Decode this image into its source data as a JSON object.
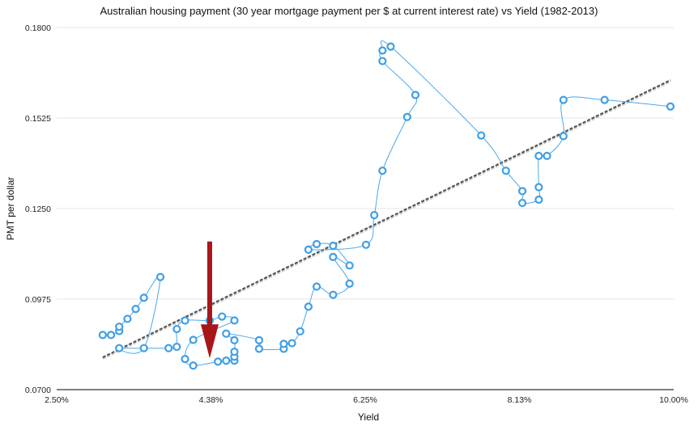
{
  "chart_data": {
    "type": "scatter",
    "title": "Australian housing payment (30 year mortgage payment per $ at current interest rate) vs Yield (1982-2013)",
    "xlabel": "Yield",
    "ylabel": "PMT per dollar",
    "xlim": [
      0.025,
      0.1
    ],
    "ylim": [
      0.07,
      0.18
    ],
    "x_ticks": [
      0.025,
      0.04375,
      0.0625,
      0.08125,
      0.1
    ],
    "x_tick_labels": [
      "2.50%",
      "4.38%",
      "6.25%",
      "8.13%",
      "10.00%"
    ],
    "y_ticks": [
      0.07,
      0.0975,
      0.125,
      0.1525,
      0.18
    ],
    "y_tick_labels": [
      "0.0700",
      "0.0975",
      "0.1250",
      "0.1525",
      "0.1800"
    ],
    "grid": "horizontal",
    "series": [
      {
        "values": [
          [
            0.0306,
            0.0866
          ],
          [
            0.0316,
            0.0866
          ],
          [
            0.0326,
            0.0878
          ],
          [
            0.0326,
            0.0891
          ],
          [
            0.0336,
            0.0915
          ],
          [
            0.0346,
            0.0945
          ],
          [
            0.0356,
            0.0979
          ],
          [
            0.0376,
            0.1042
          ],
          [
            0.0356,
            0.0826
          ],
          [
            0.0326,
            0.0826
          ],
          [
            0.0386,
            0.0826
          ],
          [
            0.0396,
            0.083
          ],
          [
            0.0396,
            0.0884
          ],
          [
            0.0406,
            0.091
          ],
          [
            0.0436,
            0.091
          ],
          [
            0.0451,
            0.0922
          ],
          [
            0.0466,
            0.091
          ],
          [
            0.0416,
            0.0851
          ],
          [
            0.0406,
            0.0793
          ],
          [
            0.0416,
            0.0773
          ],
          [
            0.0446,
            0.0785
          ],
          [
            0.0456,
            0.0788
          ],
          [
            0.0466,
            0.0788
          ],
          [
            0.0466,
            0.08
          ],
          [
            0.0466,
            0.0815
          ],
          [
            0.0466,
            0.085
          ],
          [
            0.0456,
            0.087
          ],
          [
            0.0496,
            0.085
          ],
          [
            0.0496,
            0.0824
          ],
          [
            0.0526,
            0.0824
          ],
          [
            0.0526,
            0.0839
          ],
          [
            0.0536,
            0.0841
          ],
          [
            0.0546,
            0.0877
          ],
          [
            0.0556,
            0.0952
          ],
          [
            0.0566,
            0.1013
          ],
          [
            0.0586,
            0.0988
          ],
          [
            0.0606,
            0.1022
          ],
          [
            0.0586,
            0.1103
          ],
          [
            0.0606,
            0.1077
          ],
          [
            0.0586,
            0.1137
          ],
          [
            0.0566,
            0.1142
          ],
          [
            0.0556,
            0.1125
          ],
          [
            0.0626,
            0.114
          ],
          [
            0.0636,
            0.123
          ],
          [
            0.0646,
            0.1365
          ],
          [
            0.0676,
            0.1528
          ],
          [
            0.0686,
            0.1595
          ],
          [
            0.0646,
            0.1698
          ],
          [
            0.0646,
            0.173
          ],
          [
            0.0656,
            0.1742
          ],
          [
            0.0766,
            0.1472
          ],
          [
            0.0796,
            0.1365
          ],
          [
            0.0816,
            0.1303
          ],
          [
            0.0816,
            0.1267
          ],
          [
            0.0836,
            0.1277
          ],
          [
            0.0836,
            0.1315
          ],
          [
            0.0836,
            0.141
          ],
          [
            0.0846,
            0.141
          ],
          [
            0.0866,
            0.147
          ],
          [
            0.0866,
            0.158
          ],
          [
            0.0916,
            0.158
          ],
          [
            0.0996,
            0.156
          ]
        ]
      }
    ],
    "trendline": {
      "style": "dashed",
      "from": [
        0.0306,
        0.0798
      ],
      "to": [
        0.0996,
        0.164
      ]
    },
    "annotations": [
      {
        "type": "arrow",
        "color": "#a8161b",
        "direction": "down",
        "x": 0.0436,
        "y_from": 0.115,
        "y_to": 0.0795
      }
    ]
  }
}
